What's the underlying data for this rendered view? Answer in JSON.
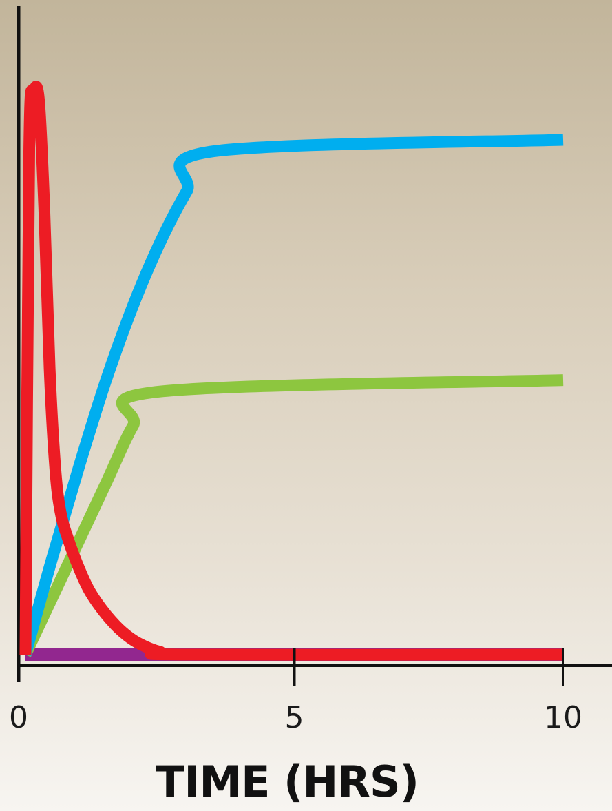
{
  "chart_data": {
    "type": "line",
    "xlabel": "TIME (HRS)",
    "ylabel": "",
    "xlim": [
      0,
      10
    ],
    "ylim": [
      0,
      100
    ],
    "xticks": [
      "0",
      "5",
      "10"
    ],
    "grid": false,
    "series": [
      {
        "color": "#00aeef",
        "x": [
          0,
          0.5,
          1,
          1.5,
          2,
          2.5,
          3,
          3.5,
          10
        ],
        "y": [
          0,
          17,
          33,
          48,
          61,
          72,
          81,
          88,
          90
        ]
      },
      {
        "color": "#8dc63f",
        "x": [
          0,
          0.5,
          1,
          1.5,
          2,
          2.5,
          10
        ],
        "y": [
          0,
          10,
          20,
          30,
          40,
          46,
          48
        ]
      },
      {
        "color": "#ed1c24",
        "x": [
          0,
          0.07,
          0.15,
          0.25,
          0.35,
          0.45,
          0.55,
          0.65,
          0.8,
          1.0,
          1.2,
          1.5,
          1.8,
          2.1,
          2.5,
          3,
          10
        ],
        "y": [
          0,
          88,
          98,
          97,
          78,
          50,
          33,
          25,
          20,
          15,
          11,
          7,
          4,
          2,
          0.5,
          0,
          0
        ]
      },
      {
        "color": "#92278f",
        "x": [
          0,
          10
        ],
        "y": [
          0,
          0
        ]
      }
    ]
  }
}
